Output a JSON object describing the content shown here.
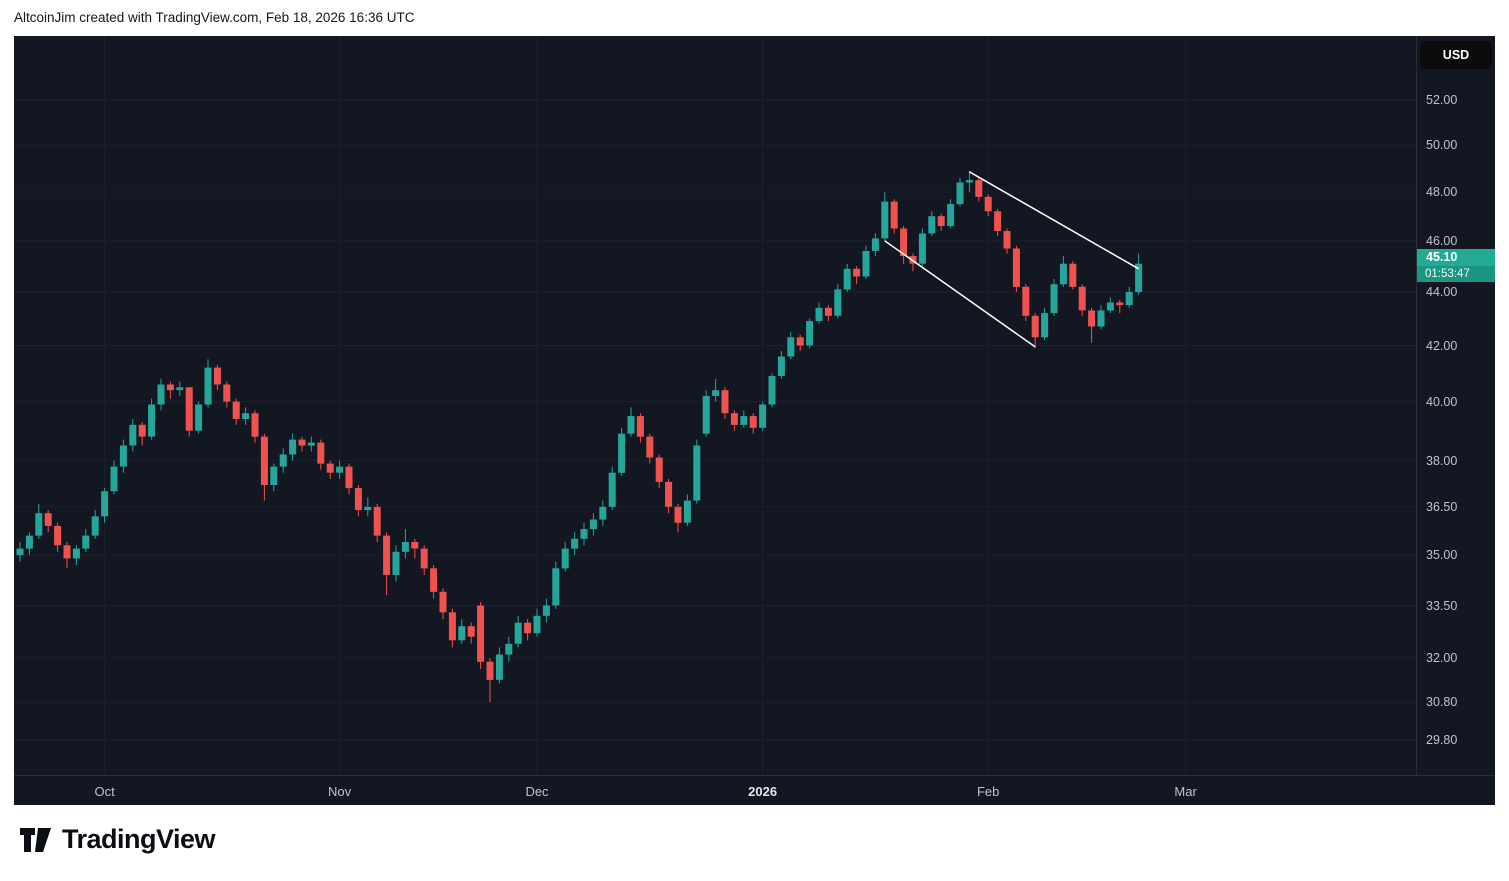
{
  "header": {
    "attribution": "AltcoinJim created with TradingView.com, Feb 18, 2026 16:36 UTC"
  },
  "chart": {
    "currency_button": "USD",
    "price_label": {
      "price": "45.10",
      "countdown": "01:53:47"
    },
    "colors": {
      "up": "#26a69a",
      "down": "#ef5350",
      "bg": "#131722",
      "axis_text": "#bfc3cc",
      "grid": "#1c2030",
      "label_bg": "#22ab94",
      "trendline": "#ffffff"
    }
  },
  "chart_data": {
    "type": "candlestick",
    "currency": "USD",
    "scale": "log",
    "last_price": 45.1,
    "countdown": "01:53:47",
    "y_ticks": [
      "52.00",
      "50.00",
      "48.00",
      "46.00",
      "44.00",
      "42.00",
      "40.00",
      "38.00",
      "36.50",
      "35.00",
      "33.50",
      "32.00",
      "30.80",
      "29.80"
    ],
    "x_ticks": [
      {
        "index": 9,
        "label": "Oct"
      },
      {
        "index": 34,
        "label": "Nov"
      },
      {
        "index": 55,
        "label": "Dec"
      },
      {
        "index": 79,
        "label": "2026",
        "emphasis": true
      },
      {
        "index": 103,
        "label": "Feb"
      },
      {
        "index": 124,
        "label": "Mar"
      }
    ],
    "candles": [
      [
        35.0,
        35.4,
        34.8,
        35.2
      ],
      [
        35.2,
        35.7,
        35.0,
        35.6
      ],
      [
        35.6,
        36.6,
        35.5,
        36.3
      ],
      [
        36.3,
        36.4,
        35.7,
        35.9
      ],
      [
        35.9,
        36.0,
        35.1,
        35.3
      ],
      [
        35.3,
        35.4,
        34.6,
        34.9
      ],
      [
        34.9,
        35.3,
        34.7,
        35.2
      ],
      [
        35.2,
        35.8,
        35.1,
        35.6
      ],
      [
        35.6,
        36.4,
        35.5,
        36.2
      ],
      [
        36.2,
        37.1,
        36.0,
        37.0
      ],
      [
        37.0,
        38.0,
        36.9,
        37.8
      ],
      [
        37.8,
        38.7,
        37.6,
        38.5
      ],
      [
        38.5,
        39.4,
        38.3,
        39.2
      ],
      [
        39.2,
        39.3,
        38.5,
        38.8
      ],
      [
        38.8,
        40.1,
        38.7,
        39.9
      ],
      [
        39.9,
        40.8,
        39.7,
        40.6
      ],
      [
        40.6,
        40.7,
        40.1,
        40.4
      ],
      [
        40.4,
        40.7,
        40.2,
        40.5
      ],
      [
        40.5,
        40.5,
        38.8,
        39.0
      ],
      [
        39.0,
        40.0,
        38.9,
        39.9
      ],
      [
        39.9,
        41.5,
        39.8,
        41.2
      ],
      [
        41.2,
        41.3,
        40.4,
        40.6
      ],
      [
        40.6,
        40.7,
        39.8,
        40.0
      ],
      [
        40.0,
        40.1,
        39.2,
        39.4
      ],
      [
        39.4,
        39.8,
        39.2,
        39.6
      ],
      [
        39.6,
        39.7,
        38.6,
        38.8
      ],
      [
        38.8,
        38.9,
        36.7,
        37.2
      ],
      [
        37.2,
        37.9,
        37.0,
        37.8
      ],
      [
        37.8,
        38.4,
        37.6,
        38.2
      ],
      [
        38.2,
        38.9,
        38.0,
        38.7
      ],
      [
        38.7,
        38.8,
        38.3,
        38.5
      ],
      [
        38.5,
        38.8,
        38.3,
        38.6
      ],
      [
        38.6,
        38.7,
        37.7,
        37.9
      ],
      [
        37.9,
        38.0,
        37.4,
        37.6
      ],
      [
        37.6,
        38.0,
        37.4,
        37.8
      ],
      [
        37.8,
        37.9,
        36.9,
        37.1
      ],
      [
        37.1,
        37.2,
        36.2,
        36.4
      ],
      [
        36.4,
        36.8,
        36.2,
        36.5
      ],
      [
        36.5,
        36.6,
        35.4,
        35.6
      ],
      [
        35.6,
        35.7,
        33.8,
        34.4
      ],
      [
        34.4,
        35.3,
        34.2,
        35.1
      ],
      [
        35.1,
        35.8,
        34.9,
        35.4
      ],
      [
        35.4,
        35.5,
        34.9,
        35.2
      ],
      [
        35.2,
        35.3,
        34.4,
        34.6
      ],
      [
        34.6,
        34.7,
        33.7,
        33.9
      ],
      [
        33.9,
        34.0,
        33.1,
        33.3
      ],
      [
        33.3,
        33.4,
        32.3,
        32.5
      ],
      [
        32.5,
        33.1,
        32.4,
        32.9
      ],
      [
        32.9,
        33.0,
        32.4,
        32.6
      ],
      [
        33.5,
        33.6,
        31.7,
        31.9
      ],
      [
        31.9,
        32.0,
        30.8,
        31.4
      ],
      [
        31.4,
        32.3,
        31.3,
        32.1
      ],
      [
        32.1,
        32.6,
        31.9,
        32.4
      ],
      [
        32.4,
        33.2,
        32.3,
        33.0
      ],
      [
        33.0,
        33.1,
        32.5,
        32.7
      ],
      [
        32.7,
        33.4,
        32.6,
        33.2
      ],
      [
        33.2,
        33.7,
        33.0,
        33.5
      ],
      [
        33.5,
        34.8,
        33.4,
        34.6
      ],
      [
        34.6,
        35.4,
        34.5,
        35.2
      ],
      [
        35.2,
        35.7,
        35.0,
        35.5
      ],
      [
        35.5,
        36.0,
        35.3,
        35.8
      ],
      [
        35.8,
        36.3,
        35.6,
        36.1
      ],
      [
        36.1,
        36.7,
        35.9,
        36.5
      ],
      [
        36.5,
        37.8,
        36.4,
        37.6
      ],
      [
        37.6,
        39.1,
        37.5,
        38.9
      ],
      [
        38.9,
        39.8,
        38.8,
        39.5
      ],
      [
        39.5,
        39.6,
        38.6,
        38.8
      ],
      [
        38.8,
        38.9,
        37.9,
        38.1
      ],
      [
        38.1,
        38.2,
        37.1,
        37.3
      ],
      [
        37.3,
        37.4,
        36.3,
        36.5
      ],
      [
        36.5,
        36.6,
        35.7,
        36.0
      ],
      [
        36.0,
        36.9,
        35.9,
        36.7
      ],
      [
        36.7,
        38.7,
        36.6,
        38.5
      ],
      [
        38.9,
        40.4,
        38.8,
        40.2
      ],
      [
        40.2,
        40.8,
        40.0,
        40.4
      ],
      [
        40.4,
        40.5,
        39.4,
        39.6
      ],
      [
        39.6,
        39.7,
        39.0,
        39.2
      ],
      [
        39.2,
        39.7,
        39.1,
        39.5
      ],
      [
        39.5,
        39.6,
        38.9,
        39.1
      ],
      [
        39.1,
        40.0,
        39.0,
        39.9
      ],
      [
        39.9,
        41.0,
        39.8,
        40.9
      ],
      [
        40.9,
        41.8,
        40.8,
        41.6
      ],
      [
        41.6,
        42.5,
        41.5,
        42.3
      ],
      [
        42.3,
        42.4,
        41.8,
        42.0
      ],
      [
        42.0,
        43.0,
        41.9,
        42.9
      ],
      [
        42.9,
        43.6,
        42.8,
        43.4
      ],
      [
        43.4,
        43.5,
        42.9,
        43.1
      ],
      [
        43.1,
        44.3,
        43.0,
        44.1
      ],
      [
        44.1,
        45.1,
        44.0,
        44.9
      ],
      [
        44.9,
        45.0,
        44.3,
        44.6
      ],
      [
        44.6,
        45.8,
        44.5,
        45.6
      ],
      [
        45.6,
        46.3,
        45.4,
        46.1
      ],
      [
        46.1,
        48.0,
        46.0,
        47.6
      ],
      [
        47.6,
        47.7,
        46.3,
        46.5
      ],
      [
        46.5,
        46.6,
        45.1,
        45.4
      ],
      [
        45.4,
        45.5,
        44.8,
        45.1
      ],
      [
        45.1,
        46.5,
        45.0,
        46.3
      ],
      [
        46.3,
        47.2,
        46.2,
        47.0
      ],
      [
        47.0,
        47.1,
        46.4,
        46.6
      ],
      [
        46.6,
        47.7,
        46.5,
        47.5
      ],
      [
        47.5,
        48.6,
        47.4,
        48.4
      ],
      [
        48.4,
        48.9,
        48.0,
        48.5
      ],
      [
        48.5,
        48.6,
        47.6,
        47.8
      ],
      [
        47.8,
        47.9,
        47.0,
        47.2
      ],
      [
        47.2,
        47.3,
        46.2,
        46.4
      ],
      [
        46.4,
        46.5,
        45.5,
        45.7
      ],
      [
        45.7,
        45.8,
        44.0,
        44.2
      ],
      [
        44.2,
        44.3,
        42.9,
        43.1
      ],
      [
        43.1,
        43.2,
        41.9,
        42.3
      ],
      [
        42.3,
        43.4,
        42.2,
        43.2
      ],
      [
        43.2,
        44.5,
        43.1,
        44.3
      ],
      [
        44.3,
        45.4,
        44.2,
        45.1
      ],
      [
        45.1,
        45.2,
        44.1,
        44.2
      ],
      [
        44.2,
        44.3,
        43.1,
        43.3
      ],
      [
        43.3,
        43.4,
        42.1,
        42.7
      ],
      [
        42.7,
        43.5,
        42.6,
        43.3
      ],
      [
        43.3,
        43.8,
        43.2,
        43.6
      ],
      [
        43.6,
        43.7,
        43.2,
        43.5
      ],
      [
        43.5,
        44.2,
        43.4,
        44.0
      ],
      [
        44.0,
        45.5,
        43.9,
        45.1
      ]
    ],
    "trendlines": [
      {
        "from": {
          "index": 101,
          "price": 48.85
        },
        "to": {
          "index": 119,
          "price": 44.9
        }
      },
      {
        "from": {
          "index": 92,
          "price": 46.0
        },
        "to": {
          "index": 108,
          "price": 41.95
        }
      }
    ]
  },
  "footer": {
    "logo_text": "TradingView"
  }
}
